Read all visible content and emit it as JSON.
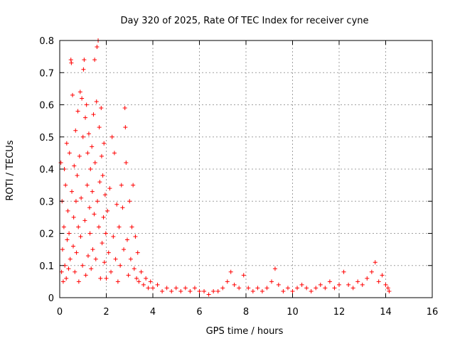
{
  "chart_data": {
    "type": "scatter",
    "title": "Day 320 of 2025, Rate Of TEC Index for receiver cyne",
    "xlabel": "GPS time / hours",
    "ylabel": "ROTI / TECUs",
    "xlim": [
      0,
      16
    ],
    "ylim": [
      0,
      0.8
    ],
    "x_ticks": [
      "0",
      "2",
      "4",
      "6",
      "8",
      "10",
      "12",
      "14",
      "16"
    ],
    "y_ticks": [
      "0",
      "0.1",
      "0.2",
      "0.3",
      "0.4",
      "0.5",
      "0.6",
      "0.7",
      "0.8"
    ],
    "grid": true,
    "legend": "none",
    "marker": "plus",
    "series": [
      {
        "color": "#ff0000",
        "points": [
          [
            0.05,
            0.42
          ],
          [
            0.08,
            0.08
          ],
          [
            0.1,
            0.3
          ],
          [
            0.12,
            0.15
          ],
          [
            0.15,
            0.05
          ],
          [
            0.18,
            0.22
          ],
          [
            0.2,
            0.4
          ],
          [
            0.22,
            0.1
          ],
          [
            0.25,
            0.35
          ],
          [
            0.28,
            0.06
          ],
          [
            0.3,
            0.48
          ],
          [
            0.32,
            0.18
          ],
          [
            0.35,
            0.27
          ],
          [
            0.38,
            0.09
          ],
          [
            0.4,
            0.2
          ],
          [
            0.42,
            0.45
          ],
          [
            0.45,
            0.12
          ],
          [
            0.48,
            0.74
          ],
          [
            0.5,
            0.73
          ],
          [
            0.52,
            0.33
          ],
          [
            0.55,
            0.63
          ],
          [
            0.58,
            0.16
          ],
          [
            0.6,
            0.25
          ],
          [
            0.62,
            0.41
          ],
          [
            0.65,
            0.08
          ],
          [
            0.68,
            0.52
          ],
          [
            0.7,
            0.3
          ],
          [
            0.72,
            0.14
          ],
          [
            0.75,
            0.38
          ],
          [
            0.78,
            0.58
          ],
          [
            0.8,
            0.22
          ],
          [
            0.82,
            0.05
          ],
          [
            0.85,
            0.44
          ],
          [
            0.88,
            0.64
          ],
          [
            0.9,
            0.19
          ],
          [
            0.92,
            0.31
          ],
          [
            0.95,
            0.62
          ],
          [
            0.98,
            0.1
          ],
          [
            1.0,
            0.5
          ],
          [
            1.02,
            0.71
          ],
          [
            1.05,
            0.74
          ],
          [
            1.08,
            0.24
          ],
          [
            1.1,
            0.56
          ],
          [
            1.12,
            0.07
          ],
          [
            1.15,
            0.6
          ],
          [
            1.18,
            0.35
          ],
          [
            1.2,
            0.45
          ],
          [
            1.22,
            0.13
          ],
          [
            1.25,
            0.51
          ],
          [
            1.28,
            0.28
          ],
          [
            1.3,
            0.2
          ],
          [
            1.32,
            0.4
          ],
          [
            1.35,
            0.09
          ],
          [
            1.38,
            0.47
          ],
          [
            1.4,
            0.33
          ],
          [
            1.42,
            0.15
          ],
          [
            1.45,
            0.57
          ],
          [
            1.48,
            0.26
          ],
          [
            1.5,
            0.74
          ],
          [
            1.52,
            0.42
          ],
          [
            1.55,
            0.12
          ],
          [
            1.58,
            0.61
          ],
          [
            1.6,
            0.78
          ],
          [
            1.62,
            0.3
          ],
          [
            1.65,
            0.8
          ],
          [
            1.68,
            0.22
          ],
          [
            1.7,
            0.53
          ],
          [
            1.72,
            0.36
          ],
          [
            1.75,
            0.06
          ],
          [
            1.78,
            0.59
          ],
          [
            1.8,
            0.44
          ],
          [
            1.82,
            0.17
          ],
          [
            1.85,
            0.38
          ],
          [
            1.88,
            0.25
          ],
          [
            1.9,
            0.48
          ],
          [
            1.92,
            0.11
          ],
          [
            1.95,
            0.32
          ],
          [
            1.98,
            0.2
          ],
          [
            2.0,
            0.06
          ],
          [
            2.05,
            0.27
          ],
          [
            2.1,
            0.14
          ],
          [
            2.15,
            0.34
          ],
          [
            2.2,
            0.08
          ],
          [
            2.25,
            0.5
          ],
          [
            2.3,
            0.19
          ],
          [
            2.35,
            0.45
          ],
          [
            2.4,
            0.12
          ],
          [
            2.45,
            0.29
          ],
          [
            2.5,
            0.05
          ],
          [
            2.55,
            0.22
          ],
          [
            2.6,
            0.1
          ],
          [
            2.65,
            0.35
          ],
          [
            2.7,
            0.28
          ],
          [
            2.75,
            0.15
          ],
          [
            2.8,
            0.59
          ],
          [
            2.82,
            0.53
          ],
          [
            2.85,
            0.42
          ],
          [
            2.9,
            0.18
          ],
          [
            2.95,
            0.07
          ],
          [
            3.0,
            0.3
          ],
          [
            3.05,
            0.12
          ],
          [
            3.1,
            0.22
          ],
          [
            3.15,
            0.35
          ],
          [
            3.2,
            0.09
          ],
          [
            3.25,
            0.19
          ],
          [
            3.3,
            0.06
          ],
          [
            3.35,
            0.14
          ],
          [
            3.4,
            0.05
          ],
          [
            3.5,
            0.08
          ],
          [
            3.6,
            0.04
          ],
          [
            3.7,
            0.06
          ],
          [
            3.8,
            0.03
          ],
          [
            3.9,
            0.05
          ],
          [
            4.0,
            0.03
          ],
          [
            4.2,
            0.04
          ],
          [
            4.4,
            0.02
          ],
          [
            4.6,
            0.03
          ],
          [
            4.8,
            0.02
          ],
          [
            5.0,
            0.03
          ],
          [
            5.2,
            0.02
          ],
          [
            5.4,
            0.03
          ],
          [
            5.6,
            0.02
          ],
          [
            5.8,
            0.03
          ],
          [
            6.0,
            0.02
          ],
          [
            6.2,
            0.02
          ],
          [
            6.4,
            0.01
          ],
          [
            6.6,
            0.02
          ],
          [
            6.8,
            0.02
          ],
          [
            7.0,
            0.03
          ],
          [
            7.2,
            0.05
          ],
          [
            7.35,
            0.08
          ],
          [
            7.5,
            0.04
          ],
          [
            7.7,
            0.03
          ],
          [
            7.9,
            0.07
          ],
          [
            8.1,
            0.03
          ],
          [
            8.3,
            0.02
          ],
          [
            8.5,
            0.03
          ],
          [
            8.7,
            0.02
          ],
          [
            8.9,
            0.03
          ],
          [
            9.1,
            0.05
          ],
          [
            9.25,
            0.09
          ],
          [
            9.4,
            0.04
          ],
          [
            9.6,
            0.02
          ],
          [
            9.8,
            0.03
          ],
          [
            10.0,
            0.02
          ],
          [
            10.2,
            0.03
          ],
          [
            10.4,
            0.04
          ],
          [
            10.6,
            0.03
          ],
          [
            10.8,
            0.02
          ],
          [
            11.0,
            0.03
          ],
          [
            11.2,
            0.04
          ],
          [
            11.4,
            0.03
          ],
          [
            11.6,
            0.05
          ],
          [
            11.8,
            0.03
          ],
          [
            12.0,
            0.04
          ],
          [
            12.2,
            0.08
          ],
          [
            12.4,
            0.04
          ],
          [
            12.6,
            0.03
          ],
          [
            12.8,
            0.05
          ],
          [
            13.0,
            0.04
          ],
          [
            13.2,
            0.06
          ],
          [
            13.4,
            0.08
          ],
          [
            13.55,
            0.11
          ],
          [
            13.7,
            0.05
          ],
          [
            13.85,
            0.07
          ],
          [
            14.0,
            0.04
          ],
          [
            14.1,
            0.03
          ],
          [
            14.15,
            0.02
          ]
        ]
      }
    ]
  }
}
